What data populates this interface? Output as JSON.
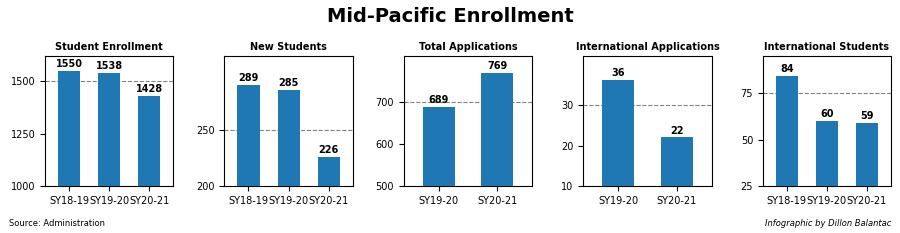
{
  "title": "Mid-Pacific Enrollment",
  "annotations": [
    "Source: Administration",
    "Infographic by Dillon Balantac"
  ],
  "chart_data": [
    {
      "type": "bar",
      "title": "Student Enrollment",
      "categories": [
        "SY18-19",
        "SY19-20",
        "SY20-21"
      ],
      "values": [
        1550,
        1538,
        1428
      ],
      "ylim": [
        1000,
        1620
      ],
      "yticks": [
        1000,
        1250,
        1500
      ],
      "reference_line": 1500,
      "data_labels": true,
      "grid": false
    },
    {
      "type": "bar",
      "title": "New Students",
      "categories": [
        "SY18-19",
        "SY19-20",
        "SY20-21"
      ],
      "values": [
        289,
        285,
        226
      ],
      "ylim": [
        200,
        315
      ],
      "yticks": [
        200,
        250
      ],
      "reference_line": 250,
      "data_labels": true,
      "grid": false
    },
    {
      "type": "bar",
      "title": "Total Applications",
      "categories": [
        "SY19-20",
        "SY20-21"
      ],
      "values": [
        689,
        769
      ],
      "ylim": [
        500,
        810
      ],
      "yticks": [
        500,
        600,
        700
      ],
      "reference_line": 700,
      "data_labels": true,
      "grid": false
    },
    {
      "type": "bar",
      "title": "International Applications",
      "categories": [
        "SY19-20",
        "SY20-21"
      ],
      "values": [
        36,
        22
      ],
      "ylim": [
        10,
        42
      ],
      "yticks": [
        10,
        20,
        30
      ],
      "reference_line": 30,
      "data_labels": true,
      "grid": false
    },
    {
      "type": "bar",
      "title": "International Students",
      "categories": [
        "SY18-19",
        "SY19-20",
        "SY20-21"
      ],
      "values": [
        84,
        60,
        59
      ],
      "ylim": [
        25,
        95
      ],
      "yticks": [
        25,
        50,
        75
      ],
      "reference_line": 75,
      "data_labels": true,
      "grid": false
    }
  ]
}
